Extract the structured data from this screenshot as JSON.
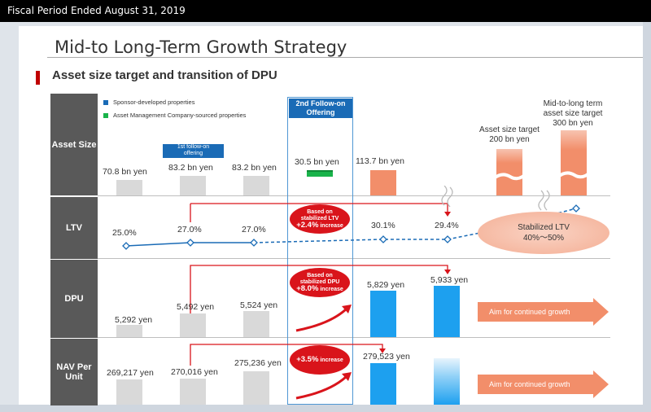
{
  "header": {
    "period": "Fiscal Period Ended August 31, 2019"
  },
  "slide": {
    "title": "Mid-to Long-Term Growth Strategy",
    "subtitle": "Asset size target and transition of DPU"
  },
  "rows": {
    "asset": "Asset Size",
    "ltv": "LTV",
    "dpu": "DPU",
    "nav1": "NAV Per",
    "nav2": "Unit"
  },
  "legend": {
    "sponsor": "Sponsor-developed properties",
    "amc": "Asset Management Company-sourced properties",
    "sponsor_color": "#1a6bb6",
    "amc_color": "#19b34a"
  },
  "offering2": {
    "line1": "2nd Follow-on",
    "line2": "Offering"
  },
  "offering1": {
    "line1": "1st follow-on",
    "line2": "offering"
  },
  "asset": {
    "v1": "70.8 bn yen",
    "v2": "83.2 bn yen",
    "v3": "83.2 bn yen",
    "v4": "30.5 bn yen",
    "v5": "113.7 bn yen"
  },
  "targets": {
    "a1": "Asset size target",
    "a2": "200 bn yen",
    "b1": "Mid-to-long term",
    "b2": "asset size target",
    "b3": "300 bn yen"
  },
  "ltv": {
    "v1": "25.0%",
    "v2": "27.0%",
    "v3": "27.0%",
    "v4": "30.1%",
    "v5": "29.4%",
    "oval1": "Based on",
    "oval2": "stabilized LTV",
    "oval3": "+2.4%",
    "oval4": "increase",
    "stab1": "Stabilized LTV",
    "stab2": "40%～50%"
  },
  "dpu": {
    "v1": "5,292 yen",
    "v2": "5,492 yen",
    "v3": "5,524 yen",
    "v4": "5,829 yen",
    "v5": "5,933 yen",
    "oval1": "Based on",
    "oval2": "stabilized DPU",
    "oval3": "+8.0%",
    "oval4": "increase",
    "aim": "Aim for continued growth"
  },
  "nav": {
    "v1": "269,217 yen",
    "v2": "270,016 yen",
    "v3": "275,236 yen",
    "v4": "279,523 yen",
    "oval1": "+3.5%",
    "oval2": "increase",
    "aim": "Aim for continued growth"
  },
  "colors": {
    "red": "#d9141b",
    "blue": "#1da0ef",
    "orange": "#f28e6a",
    "navy": "#1a6bb6"
  }
}
